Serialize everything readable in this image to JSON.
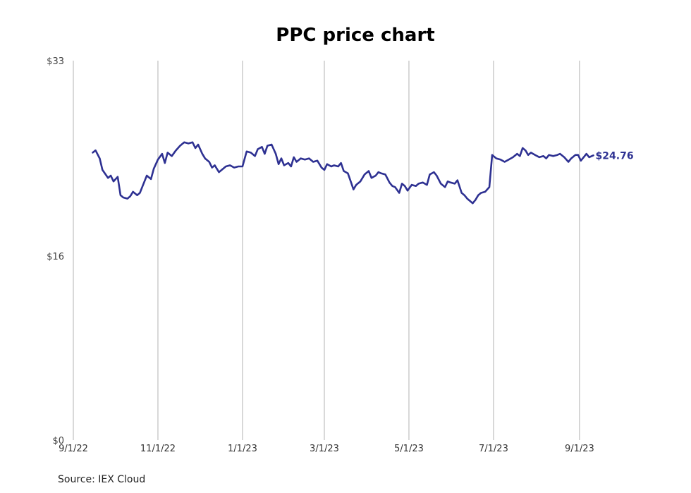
{
  "chart_data": {
    "type": "line",
    "title": "PPC price chart",
    "xlabel": "",
    "ylabel": "",
    "ylim": [
      0,
      33
    ],
    "xlim": [
      "2022-09-01",
      "2023-09-27"
    ],
    "x_ticks": [
      "2022-09-01",
      "2022-11-01",
      "2023-01-01",
      "2023-03-01",
      "2023-05-01",
      "2023-07-01",
      "2023-09-01"
    ],
    "x_tick_labels": [
      "9/1/22",
      "11/1/22",
      "1/1/23",
      "3/1/23",
      "5/1/23",
      "7/1/23",
      "9/1/23"
    ],
    "y_ticks": [
      0,
      16,
      33
    ],
    "y_tick_labels": [
      "$0",
      "$16",
      "$33"
    ],
    "grid": "vertical",
    "line_color": "#2e3192",
    "series": [
      {
        "values": [
          [
            "2022-09-15",
            25.0
          ],
          [
            "2022-09-17",
            25.2
          ],
          [
            "2022-09-20",
            24.5
          ],
          [
            "2022-09-22",
            23.5
          ],
          [
            "2022-09-26",
            22.8
          ],
          [
            "2022-09-28",
            23.0
          ],
          [
            "2022-09-30",
            22.5
          ],
          [
            "2022-10-03",
            22.9
          ],
          [
            "2022-10-05",
            21.3
          ],
          [
            "2022-10-07",
            21.1
          ],
          [
            "2022-10-10",
            21.0
          ],
          [
            "2022-10-12",
            21.2
          ],
          [
            "2022-10-14",
            21.6
          ],
          [
            "2022-10-17",
            21.3
          ],
          [
            "2022-10-19",
            21.5
          ],
          [
            "2022-10-21",
            22.1
          ],
          [
            "2022-10-24",
            23.0
          ],
          [
            "2022-10-27",
            22.7
          ],
          [
            "2022-10-29",
            23.6
          ],
          [
            "2022-11-01",
            24.4
          ],
          [
            "2022-11-04",
            24.9
          ],
          [
            "2022-11-06",
            24.1
          ],
          [
            "2022-11-08",
            25.0
          ],
          [
            "2022-11-11",
            24.7
          ],
          [
            "2022-11-14",
            25.2
          ],
          [
            "2022-11-17",
            25.6
          ],
          [
            "2022-11-20",
            25.9
          ],
          [
            "2022-11-23",
            25.8
          ],
          [
            "2022-11-26",
            25.9
          ],
          [
            "2022-11-28",
            25.4
          ],
          [
            "2022-11-30",
            25.7
          ],
          [
            "2022-12-03",
            24.9
          ],
          [
            "2022-12-05",
            24.5
          ],
          [
            "2022-12-08",
            24.2
          ],
          [
            "2022-12-10",
            23.7
          ],
          [
            "2022-12-12",
            23.9
          ],
          [
            "2022-12-15",
            23.3
          ],
          [
            "2022-12-18",
            23.6
          ],
          [
            "2022-12-20",
            23.8
          ],
          [
            "2022-12-23",
            23.9
          ],
          [
            "2022-12-26",
            23.7
          ],
          [
            "2022-12-29",
            23.8
          ],
          [
            "2023-01-01",
            23.8
          ],
          [
            "2023-01-04",
            25.1
          ],
          [
            "2023-01-07",
            25.0
          ],
          [
            "2023-01-10",
            24.7
          ],
          [
            "2023-01-12",
            25.3
          ],
          [
            "2023-01-15",
            25.5
          ],
          [
            "2023-01-17",
            24.9
          ],
          [
            "2023-01-19",
            25.6
          ],
          [
            "2023-01-22",
            25.7
          ],
          [
            "2023-01-25",
            24.9
          ],
          [
            "2023-01-27",
            24.0
          ],
          [
            "2023-01-29",
            24.5
          ],
          [
            "2023-01-31",
            23.9
          ],
          [
            "2023-02-03",
            24.1
          ],
          [
            "2023-02-05",
            23.8
          ],
          [
            "2023-02-07",
            24.6
          ],
          [
            "2023-02-09",
            24.2
          ],
          [
            "2023-02-12",
            24.5
          ],
          [
            "2023-02-15",
            24.4
          ],
          [
            "2023-02-18",
            24.5
          ],
          [
            "2023-02-21",
            24.2
          ],
          [
            "2023-02-24",
            24.3
          ],
          [
            "2023-02-27",
            23.7
          ],
          [
            "2023-03-01",
            23.5
          ],
          [
            "2023-03-03",
            24.0
          ],
          [
            "2023-03-06",
            23.8
          ],
          [
            "2023-03-08",
            23.9
          ],
          [
            "2023-03-11",
            23.8
          ],
          [
            "2023-03-13",
            24.1
          ],
          [
            "2023-03-15",
            23.4
          ],
          [
            "2023-03-18",
            23.2
          ],
          [
            "2023-03-20",
            22.5
          ],
          [
            "2023-03-22",
            21.8
          ],
          [
            "2023-03-24",
            22.2
          ],
          [
            "2023-03-27",
            22.5
          ],
          [
            "2023-03-30",
            23.1
          ],
          [
            "2023-04-02",
            23.4
          ],
          [
            "2023-04-04",
            22.8
          ],
          [
            "2023-04-07",
            23.0
          ],
          [
            "2023-04-09",
            23.3
          ],
          [
            "2023-04-11",
            23.2
          ],
          [
            "2023-04-14",
            23.1
          ],
          [
            "2023-04-17",
            22.4
          ],
          [
            "2023-04-19",
            22.1
          ],
          [
            "2023-04-21",
            22.0
          ],
          [
            "2023-04-24",
            21.5
          ],
          [
            "2023-04-26",
            22.3
          ],
          [
            "2023-04-28",
            22.1
          ],
          [
            "2023-04-30",
            21.7
          ],
          [
            "2023-05-03",
            22.2
          ],
          [
            "2023-05-06",
            22.1
          ],
          [
            "2023-05-08",
            22.3
          ],
          [
            "2023-05-11",
            22.4
          ],
          [
            "2023-05-14",
            22.2
          ],
          [
            "2023-05-16",
            23.1
          ],
          [
            "2023-05-19",
            23.3
          ],
          [
            "2023-05-21",
            23.0
          ],
          [
            "2023-05-24",
            22.3
          ],
          [
            "2023-05-27",
            22.0
          ],
          [
            "2023-05-29",
            22.5
          ],
          [
            "2023-05-31",
            22.4
          ],
          [
            "2023-06-03",
            22.3
          ],
          [
            "2023-06-05",
            22.6
          ],
          [
            "2023-06-08",
            21.5
          ],
          [
            "2023-06-10",
            21.3
          ],
          [
            "2023-06-12",
            21.0
          ],
          [
            "2023-06-14",
            20.8
          ],
          [
            "2023-06-16",
            20.6
          ],
          [
            "2023-06-18",
            20.9
          ],
          [
            "2023-06-20",
            21.3
          ],
          [
            "2023-06-22",
            21.5
          ],
          [
            "2023-06-25",
            21.6
          ],
          [
            "2023-06-28",
            22.0
          ],
          [
            "2023-06-30",
            24.8
          ],
          [
            "2023-07-03",
            24.5
          ],
          [
            "2023-07-06",
            24.4
          ],
          [
            "2023-07-09",
            24.2
          ],
          [
            "2023-07-12",
            24.4
          ],
          [
            "2023-07-15",
            24.6
          ],
          [
            "2023-07-18",
            24.9
          ],
          [
            "2023-07-20",
            24.7
          ],
          [
            "2023-07-22",
            25.4
          ],
          [
            "2023-07-24",
            25.2
          ],
          [
            "2023-07-26",
            24.8
          ],
          [
            "2023-07-28",
            25.0
          ],
          [
            "2023-07-31",
            24.8
          ],
          [
            "2023-08-03",
            24.6
          ],
          [
            "2023-08-06",
            24.7
          ],
          [
            "2023-08-08",
            24.5
          ],
          [
            "2023-08-10",
            24.8
          ],
          [
            "2023-08-13",
            24.7
          ],
          [
            "2023-08-16",
            24.8
          ],
          [
            "2023-08-18",
            24.9
          ],
          [
            "2023-08-21",
            24.6
          ],
          [
            "2023-08-24",
            24.2
          ],
          [
            "2023-08-26",
            24.5
          ],
          [
            "2023-08-29",
            24.8
          ],
          [
            "2023-08-31",
            24.8
          ],
          [
            "2023-09-02",
            24.3
          ],
          [
            "2023-09-04",
            24.6
          ],
          [
            "2023-09-06",
            24.9
          ],
          [
            "2023-09-08",
            24.6
          ],
          [
            "2023-09-11",
            24.76
          ]
        ]
      }
    ],
    "last_value_label": "$24.76",
    "source": "Source: IEX Cloud"
  }
}
